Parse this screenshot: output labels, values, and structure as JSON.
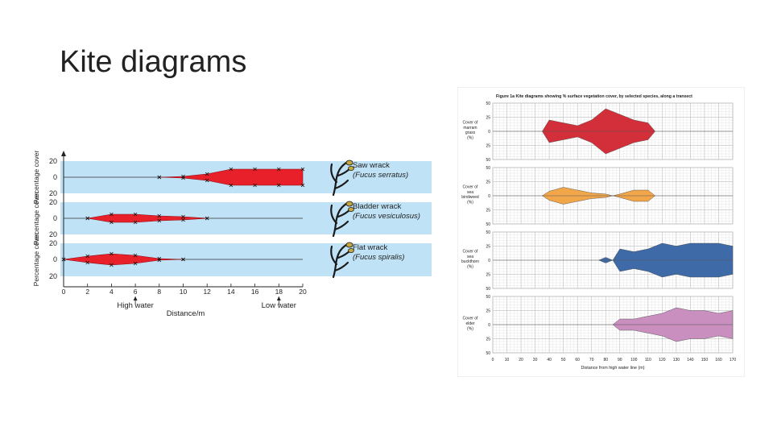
{
  "slide": {
    "title": "Kite diagrams"
  },
  "chart_data": [
    {
      "type": "area",
      "subtype": "kite",
      "xlabel": "Distance/m",
      "ylabel": "Percentage cover",
      "xlim": [
        0,
        20
      ],
      "x_ticks": [
        0,
        2,
        4,
        6,
        8,
        10,
        12,
        14,
        16,
        18,
        20
      ],
      "y_ticks": [
        20,
        0,
        20
      ],
      "annotations": [
        "High water",
        "Low water"
      ],
      "annotation_x": [
        6,
        18
      ],
      "series": [
        {
          "name": "Saw wrack",
          "latin": "(Fucus serratus)",
          "x": [
            8,
            10,
            12,
            14,
            16,
            18,
            20
          ],
          "values": [
            0,
            1,
            4,
            10,
            10,
            10,
            10
          ]
        },
        {
          "name": "Bladder wrack",
          "latin": "(Fucus vesiculosus)",
          "x": [
            2,
            4,
            6,
            8,
            10,
            12
          ],
          "values": [
            0,
            5,
            5,
            3,
            2,
            0
          ]
        },
        {
          "name": "Flat wrack",
          "latin": "(Fucus spiralis)",
          "x": [
            0,
            2,
            4,
            6,
            8,
            10
          ],
          "values": [
            0,
            4,
            7,
            5,
            1,
            0
          ]
        }
      ]
    },
    {
      "type": "area",
      "subtype": "kite",
      "title": "Figure 1a  Kite diagrams showing % surface vegetation cover, by selected species, along a transect",
      "xlabel": "Distance from high water line (m)",
      "xlim": [
        0,
        170
      ],
      "x_ticks": [
        0,
        10,
        20,
        30,
        40,
        50,
        60,
        70,
        80,
        90,
        100,
        110,
        120,
        130,
        140,
        150,
        160,
        170
      ],
      "ylim": [
        -50,
        50
      ],
      "y_ticks": [
        50,
        25,
        0,
        25,
        50
      ],
      "series": [
        {
          "name": "Cover of marram grass (%)",
          "color": "#d32f3a",
          "x": [
            35,
            40,
            50,
            60,
            70,
            80,
            90,
            100,
            110,
            115
          ],
          "values": [
            0,
            20,
            15,
            10,
            20,
            40,
            30,
            20,
            15,
            0
          ]
        },
        {
          "name": "Cover of sea bindweed (%)",
          "color": "#f2a64a",
          "x": [
            35,
            40,
            50,
            60,
            70,
            80,
            85,
            90,
            100,
            110,
            115
          ],
          "values": [
            0,
            8,
            15,
            10,
            5,
            3,
            0,
            3,
            10,
            10,
            0
          ]
        },
        {
          "name": "Cover of sea buckthorn (%)",
          "color": "#3f6aa8",
          "x": [
            75,
            80,
            85,
            90,
            100,
            110,
            120,
            130,
            140,
            150,
            160,
            170
          ],
          "values": [
            0,
            5,
            0,
            20,
            15,
            20,
            30,
            25,
            30,
            30,
            30,
            25
          ]
        },
        {
          "name": "Cover of elder (%)",
          "color": "#c88fbf",
          "x": [
            85,
            90,
            100,
            110,
            120,
            130,
            140,
            150,
            160,
            170
          ],
          "values": [
            0,
            10,
            10,
            15,
            20,
            30,
            25,
            25,
            20,
            25
          ]
        }
      ]
    }
  ]
}
